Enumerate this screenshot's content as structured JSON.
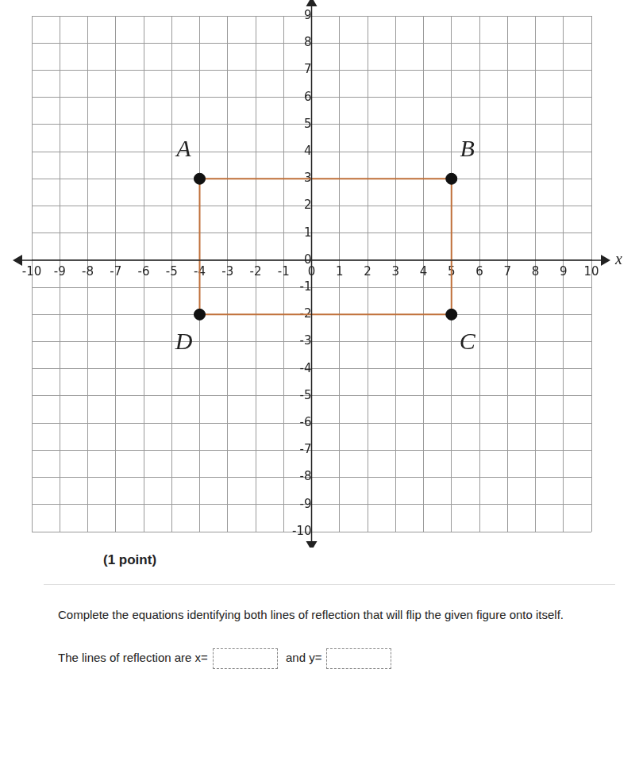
{
  "chart_data": {
    "type": "scatter",
    "x_label": "x",
    "x": [
      -4,
      5,
      5,
      -4
    ],
    "values": [
      3,
      3,
      -2,
      -2
    ],
    "point_labels": [
      "A",
      "B",
      "C",
      "D"
    ],
    "color": "#c0703a",
    "marker": "circle",
    "line_style": "solid",
    "xlim": [
      -10,
      10
    ],
    "ylim": [
      -10,
      9
    ],
    "xticks": [
      -10,
      -9,
      -8,
      -7,
      -6,
      -5,
      -4,
      -3,
      -2,
      -1,
      0,
      1,
      2,
      3,
      4,
      5,
      6,
      7,
      8,
      9,
      10
    ],
    "yticks": [
      -10,
      -9,
      -8,
      -7,
      -6,
      -5,
      -4,
      -3,
      -2,
      -1,
      0,
      1,
      2,
      3,
      4,
      5,
      6,
      7,
      8,
      9
    ],
    "grid": true
  },
  "question": {
    "points": "(1 point)",
    "prompt": "Complete the equations identifying both lines of reflection that will flip the given figure onto itself.",
    "answer_prefix": "The lines of reflection are",
    "x_field": "x=",
    "joiner": "and",
    "y_field": "y="
  }
}
